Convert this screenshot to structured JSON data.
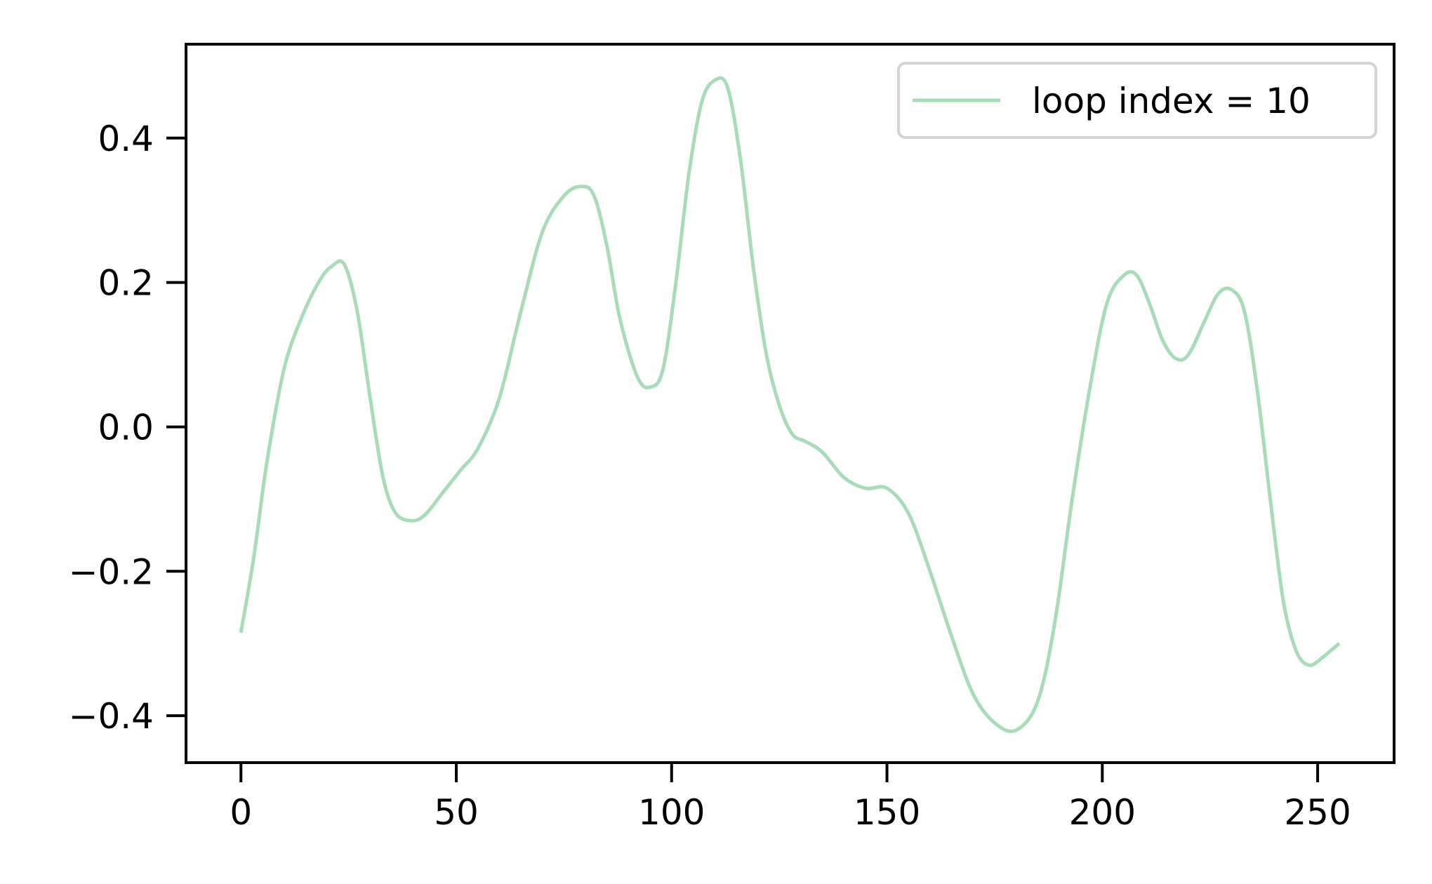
{
  "chart_data": {
    "type": "line",
    "title": "",
    "xlabel": "",
    "ylabel": "",
    "xlim": [
      -12.75,
      267.75
    ],
    "ylim": [
      -0.465,
      0.53
    ],
    "xticks": [
      0,
      50,
      100,
      150,
      200,
      250
    ],
    "yticks": [
      -0.4,
      -0.2,
      0.0,
      0.2,
      0.4
    ],
    "xtick_labels": [
      "0",
      "50",
      "100",
      "150",
      "200",
      "250"
    ],
    "ytick_labels": [
      "−0.4",
      "−0.2",
      "0.0",
      "0.2",
      "0.4"
    ],
    "grid": false,
    "legend": {
      "placement": "top-right",
      "entries": [
        "loop index = 10"
      ]
    },
    "colors": {
      "series": "#a8dcb8",
      "axes": "#000000",
      "legend_border": "#d4d4d4"
    },
    "series": [
      {
        "name": "loop index = 10",
        "x": [
          0,
          3,
          6,
          10,
          14,
          18,
          21,
          24,
          27,
          30,
          33,
          36,
          40,
          43,
          47,
          51,
          55,
          60,
          65,
          70,
          75,
          79,
          82,
          85,
          88,
          92,
          95,
          98,
          101,
          104,
          107,
          110,
          113,
          116,
          119,
          122,
          125,
          128,
          131,
          135,
          140,
          145,
          150,
          155,
          160,
          165,
          170,
          175,
          180,
          185,
          189,
          193,
          197,
          201,
          205,
          208,
          211,
          214,
          217,
          220,
          224,
          227,
          230,
          233,
          236,
          239,
          242,
          245,
          248,
          251,
          253,
          255
        ],
        "y": [
          -0.285,
          -0.18,
          -0.05,
          0.08,
          0.15,
          0.2,
          0.222,
          0.225,
          0.16,
          0.04,
          -0.07,
          -0.12,
          -0.13,
          -0.12,
          -0.09,
          -0.06,
          -0.03,
          0.04,
          0.16,
          0.27,
          0.32,
          0.333,
          0.32,
          0.25,
          0.15,
          0.07,
          0.055,
          0.08,
          0.2,
          0.35,
          0.45,
          0.48,
          0.47,
          0.37,
          0.22,
          0.1,
          0.03,
          -0.01,
          -0.02,
          -0.035,
          -0.07,
          -0.085,
          -0.085,
          -0.12,
          -0.2,
          -0.29,
          -0.37,
          -0.41,
          -0.42,
          -0.38,
          -0.27,
          -0.1,
          0.05,
          0.17,
          0.21,
          0.21,
          0.17,
          0.12,
          0.095,
          0.1,
          0.15,
          0.185,
          0.19,
          0.16,
          0.05,
          -0.1,
          -0.24,
          -0.31,
          -0.33,
          -0.32,
          -0.31,
          -0.3
        ]
      }
    ]
  }
}
